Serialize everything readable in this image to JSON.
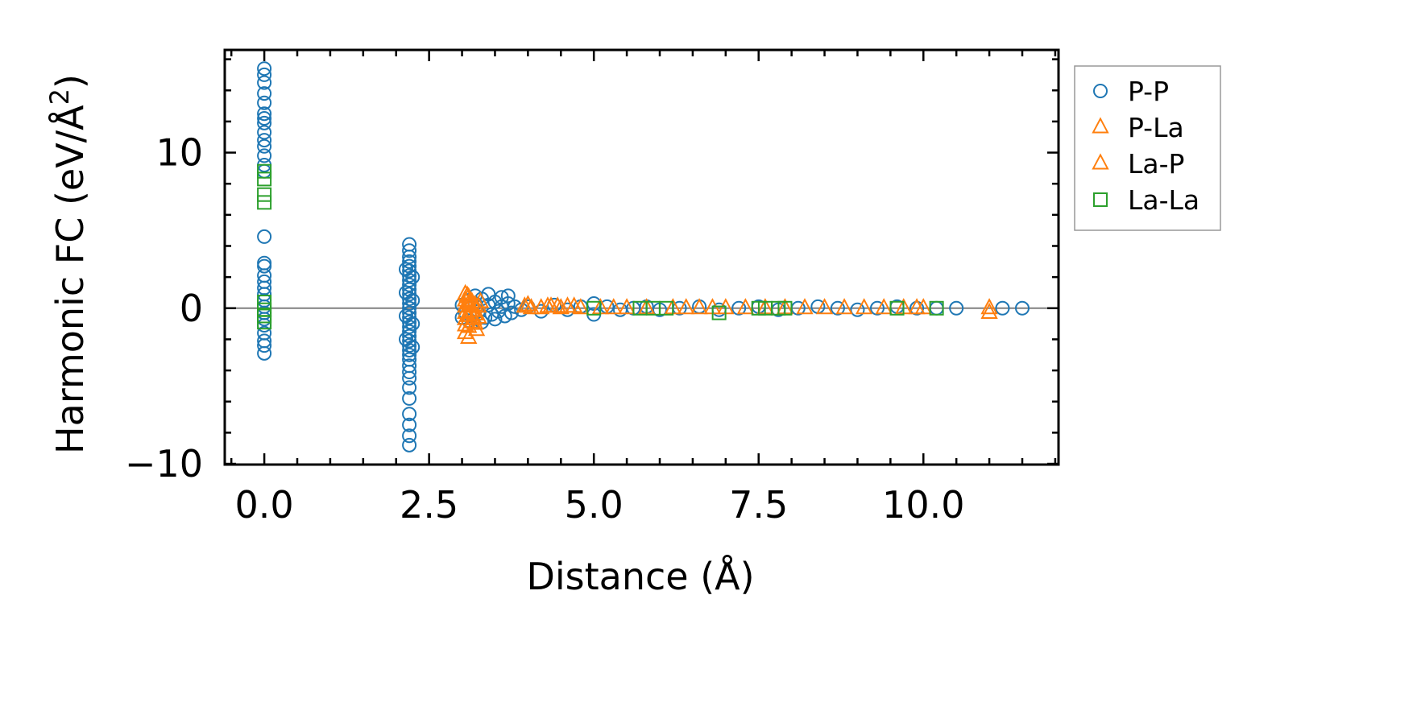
{
  "chart_data": {
    "type": "scatter",
    "title": "",
    "xlabel": "Distance (Å)",
    "ylabel_main": "Harmonic FC (eV/Å",
    "ylabel_sup": "2",
    "ylabel_end": ")",
    "xlim": [
      -0.6,
      12.05
    ],
    "ylim": [
      -10.05,
      16.6
    ],
    "x_ticks": [
      0.0,
      2.5,
      5.0,
      7.5,
      10.0
    ],
    "x_tick_labels": [
      "0.0",
      "2.5",
      "5.0",
      "7.5",
      "10.0"
    ],
    "y_ticks": [
      -10,
      0,
      10
    ],
    "y_tick_labels": [
      "−10",
      "0",
      "10"
    ],
    "zero_line": 0,
    "legend_position": "right-outside-top",
    "colors": {
      "P-P": "#1f77b4",
      "P-La": "#ff7f0e",
      "La-P": "#ff7f0e",
      "La-La": "#2ca02c"
    },
    "series": [
      {
        "name": "P-P",
        "marker": "circle",
        "points": [
          [
            0,
            15.4
          ],
          [
            0,
            15.0
          ],
          [
            0,
            14.5
          ],
          [
            0,
            13.8
          ],
          [
            0,
            13.2
          ],
          [
            0,
            12.5
          ],
          [
            0,
            12.2
          ],
          [
            0,
            11.9
          ],
          [
            0,
            11.3
          ],
          [
            0,
            10.8
          ],
          [
            0,
            10.4
          ],
          [
            0,
            9.8
          ],
          [
            0,
            9.2
          ],
          [
            0,
            8.8
          ],
          [
            0,
            4.6
          ],
          [
            0,
            2.9
          ],
          [
            0,
            2.7
          ],
          [
            0,
            2.1
          ],
          [
            0,
            1.7
          ],
          [
            0,
            1.3
          ],
          [
            0,
            0.9
          ],
          [
            0,
            0.5
          ],
          [
            0,
            0.1
          ],
          [
            0,
            -0.3
          ],
          [
            0,
            -0.7
          ],
          [
            0,
            -1.1
          ],
          [
            0,
            -1.6
          ],
          [
            0,
            -2.1
          ],
          [
            0,
            -2.4
          ],
          [
            0,
            -2.9
          ],
          [
            2.2,
            4.1
          ],
          [
            2.2,
            3.7
          ],
          [
            2.2,
            3.3
          ],
          [
            2.2,
            3.0
          ],
          [
            2.2,
            2.7
          ],
          [
            2.2,
            2.4
          ],
          [
            2.2,
            2.1
          ],
          [
            2.2,
            1.8
          ],
          [
            2.2,
            1.5
          ],
          [
            2.2,
            1.2
          ],
          [
            2.2,
            0.9
          ],
          [
            2.2,
            0.6
          ],
          [
            2.2,
            0.3
          ],
          [
            2.2,
            0.0
          ],
          [
            2.2,
            -0.3
          ],
          [
            2.2,
            -0.6
          ],
          [
            2.2,
            -0.9
          ],
          [
            2.2,
            -1.2
          ],
          [
            2.2,
            -1.5
          ],
          [
            2.2,
            -1.8
          ],
          [
            2.2,
            -2.1
          ],
          [
            2.2,
            -2.4
          ],
          [
            2.2,
            -2.7
          ],
          [
            2.2,
            -3.0
          ],
          [
            2.2,
            -3.3
          ],
          [
            2.2,
            -3.7
          ],
          [
            2.2,
            -4.1
          ],
          [
            2.2,
            -4.5
          ],
          [
            2.2,
            -5.1
          ],
          [
            2.2,
            -5.8
          ],
          [
            2.2,
            -6.8
          ],
          [
            2.2,
            -7.5
          ],
          [
            2.2,
            -8.2
          ],
          [
            2.2,
            -8.8
          ],
          [
            2.15,
            2.5
          ],
          [
            2.15,
            1.0
          ],
          [
            2.15,
            -0.5
          ],
          [
            2.15,
            -2.0
          ],
          [
            2.25,
            2.0
          ],
          [
            2.25,
            0.5
          ],
          [
            2.25,
            -1.0
          ],
          [
            2.25,
            -2.5
          ],
          [
            3.0,
            0.2
          ],
          [
            3.05,
            -0.3
          ],
          [
            3.1,
            0.5
          ],
          [
            3.15,
            -0.5
          ],
          [
            3.2,
            0.3
          ],
          [
            3.25,
            -0.2
          ],
          [
            3.3,
            0.6
          ],
          [
            3.35,
            -0.6
          ],
          [
            3.4,
            0.2
          ],
          [
            3.45,
            -0.4
          ],
          [
            3.5,
            0.4
          ],
          [
            3.55,
            -0.2
          ],
          [
            3.6,
            0.7
          ],
          [
            3.65,
            -0.5
          ],
          [
            3.7,
            0.3
          ],
          [
            3.75,
            -0.3
          ],
          [
            3.0,
            -0.6
          ],
          [
            3.1,
            -0.8
          ],
          [
            3.2,
            0.8
          ],
          [
            3.3,
            -0.9
          ],
          [
            3.4,
            0.9
          ],
          [
            3.5,
            -0.7
          ],
          [
            3.6,
            0.1
          ],
          [
            3.7,
            0.8
          ],
          [
            3.8,
            0.1
          ],
          [
            3.9,
            -0.1
          ],
          [
            4.0,
            0.1
          ],
          [
            4.2,
            -0.2
          ],
          [
            4.4,
            0.2
          ],
          [
            4.6,
            -0.1
          ],
          [
            4.8,
            0.1
          ],
          [
            5.0,
            0.3
          ],
          [
            5.0,
            -0.4
          ],
          [
            5.2,
            0.1
          ],
          [
            5.4,
            -0.1
          ],
          [
            5.6,
            0.0
          ],
          [
            5.8,
            0.1
          ],
          [
            6.0,
            -0.1
          ],
          [
            6.3,
            0.0
          ],
          [
            6.6,
            0.1
          ],
          [
            6.9,
            -0.1
          ],
          [
            7.2,
            0.0
          ],
          [
            7.5,
            0.1
          ],
          [
            7.8,
            -0.1
          ],
          [
            8.1,
            0.0
          ],
          [
            8.4,
            0.1
          ],
          [
            8.7,
            0.0
          ],
          [
            9.0,
            -0.1
          ],
          [
            9.3,
            0.0
          ],
          [
            9.6,
            0.1
          ],
          [
            9.9,
            0.0
          ],
          [
            10.2,
            0.0
          ],
          [
            10.5,
            0.0
          ],
          [
            11.2,
            0.0
          ],
          [
            11.5,
            0.0
          ]
        ]
      },
      {
        "name": "P-La",
        "marker": "triangle",
        "points": [
          [
            3.05,
            0.9
          ],
          [
            3.05,
            0.5
          ],
          [
            3.05,
            0.1
          ],
          [
            3.05,
            -0.3
          ],
          [
            3.05,
            -0.7
          ],
          [
            3.05,
            -1.1
          ],
          [
            3.05,
            -1.6
          ],
          [
            3.1,
            -1.9
          ],
          [
            3.1,
            0.7
          ],
          [
            3.1,
            0.3
          ],
          [
            3.1,
            -0.5
          ],
          [
            3.1,
            -1.2
          ],
          [
            3.15,
            0.4
          ],
          [
            3.15,
            -0.2
          ],
          [
            3.15,
            -0.9
          ],
          [
            3.2,
            0.2
          ],
          [
            3.2,
            -0.4
          ],
          [
            3.2,
            -1.0
          ],
          [
            3.25,
            0.1
          ],
          [
            3.25,
            -0.6
          ],
          [
            3.95,
            0.1
          ],
          [
            4.05,
            0.0
          ],
          [
            4.3,
            0.1
          ],
          [
            4.45,
            0.1
          ],
          [
            4.6,
            0.1
          ],
          [
            4.8,
            0.0
          ],
          [
            5.1,
            0.0
          ],
          [
            5.5,
            0.0
          ],
          [
            6.2,
            0.0
          ],
          [
            6.6,
            0.0
          ],
          [
            7.0,
            0.0
          ],
          [
            7.6,
            0.0
          ],
          [
            8.2,
            0.0
          ],
          [
            8.8,
            0.0
          ],
          [
            9.4,
            0.0
          ],
          [
            9.9,
            0.0
          ]
        ]
      },
      {
        "name": "La-P",
        "marker": "triangle",
        "points": [
          [
            3.08,
            0.8
          ],
          [
            3.12,
            0.2
          ],
          [
            3.18,
            -0.7
          ],
          [
            3.22,
            -1.4
          ],
          [
            3.28,
            0.4
          ],
          [
            4.0,
            0.2
          ],
          [
            4.2,
            0.0
          ],
          [
            4.35,
            0.1
          ],
          [
            4.5,
            0.0
          ],
          [
            4.7,
            0.1
          ],
          [
            5.3,
            0.0
          ],
          [
            5.8,
            0.0
          ],
          [
            6.4,
            0.0
          ],
          [
            6.8,
            0.0
          ],
          [
            7.3,
            0.0
          ],
          [
            7.9,
            0.0
          ],
          [
            8.5,
            0.0
          ],
          [
            9.1,
            0.0
          ],
          [
            9.7,
            0.0
          ],
          [
            10.0,
            0.0
          ],
          [
            11.0,
            0.0
          ],
          [
            11.0,
            -0.3
          ]
        ]
      },
      {
        "name": "La-La",
        "marker": "square",
        "points": [
          [
            0,
            8.8
          ],
          [
            0,
            8.3
          ],
          [
            0,
            7.3
          ],
          [
            0,
            6.8
          ],
          [
            0,
            0.4
          ],
          [
            0,
            -0.1
          ],
          [
            0,
            -0.5
          ],
          [
            0,
            -0.9
          ],
          [
            5.0,
            0.0
          ],
          [
            5.7,
            0.0
          ],
          [
            5.9,
            0.0
          ],
          [
            6.1,
            0.0
          ],
          [
            6.9,
            -0.3
          ],
          [
            7.5,
            0.0
          ],
          [
            7.6,
            0.0
          ],
          [
            7.8,
            0.0
          ],
          [
            7.9,
            0.0
          ],
          [
            9.6,
            0.0
          ],
          [
            10.2,
            0.0
          ]
        ]
      }
    ]
  }
}
